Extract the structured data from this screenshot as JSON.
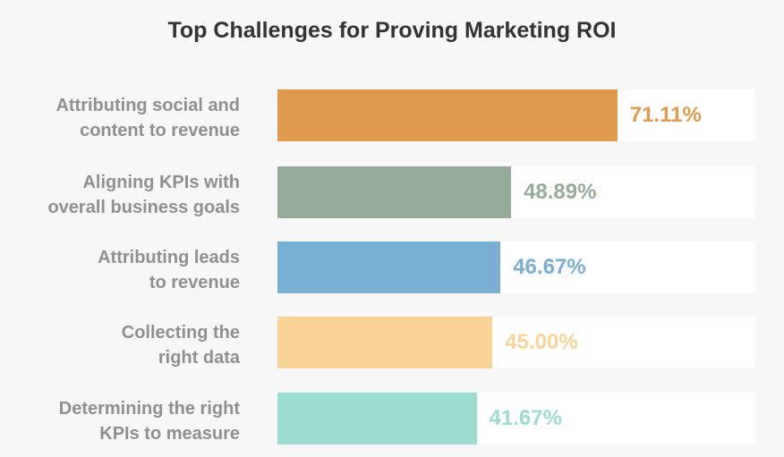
{
  "chart_data": {
    "type": "bar",
    "orientation": "horizontal",
    "title": "Top Challenges for Proving Marketing ROI",
    "xlim": [
      0,
      100
    ],
    "grid": false,
    "categories": [
      [
        "Attributing social and",
        "content to revenue"
      ],
      [
        "Aligning KPIs with",
        "overall business goals"
      ],
      [
        "Attributing leads",
        "to revenue"
      ],
      [
        "Collecting the",
        "right data"
      ],
      [
        "Determining the right",
        "KPIs to measure"
      ]
    ],
    "values": [
      71.11,
      48.89,
      46.67,
      45.0,
      41.67
    ],
    "value_labels": [
      "71.11%",
      "48.89%",
      "46.67%",
      "45.00%",
      "41.67%"
    ],
    "colors": [
      "#e09b4f",
      "#97ab9b",
      "#7aafd4",
      "#fad398",
      "#9ddcd0"
    ]
  }
}
